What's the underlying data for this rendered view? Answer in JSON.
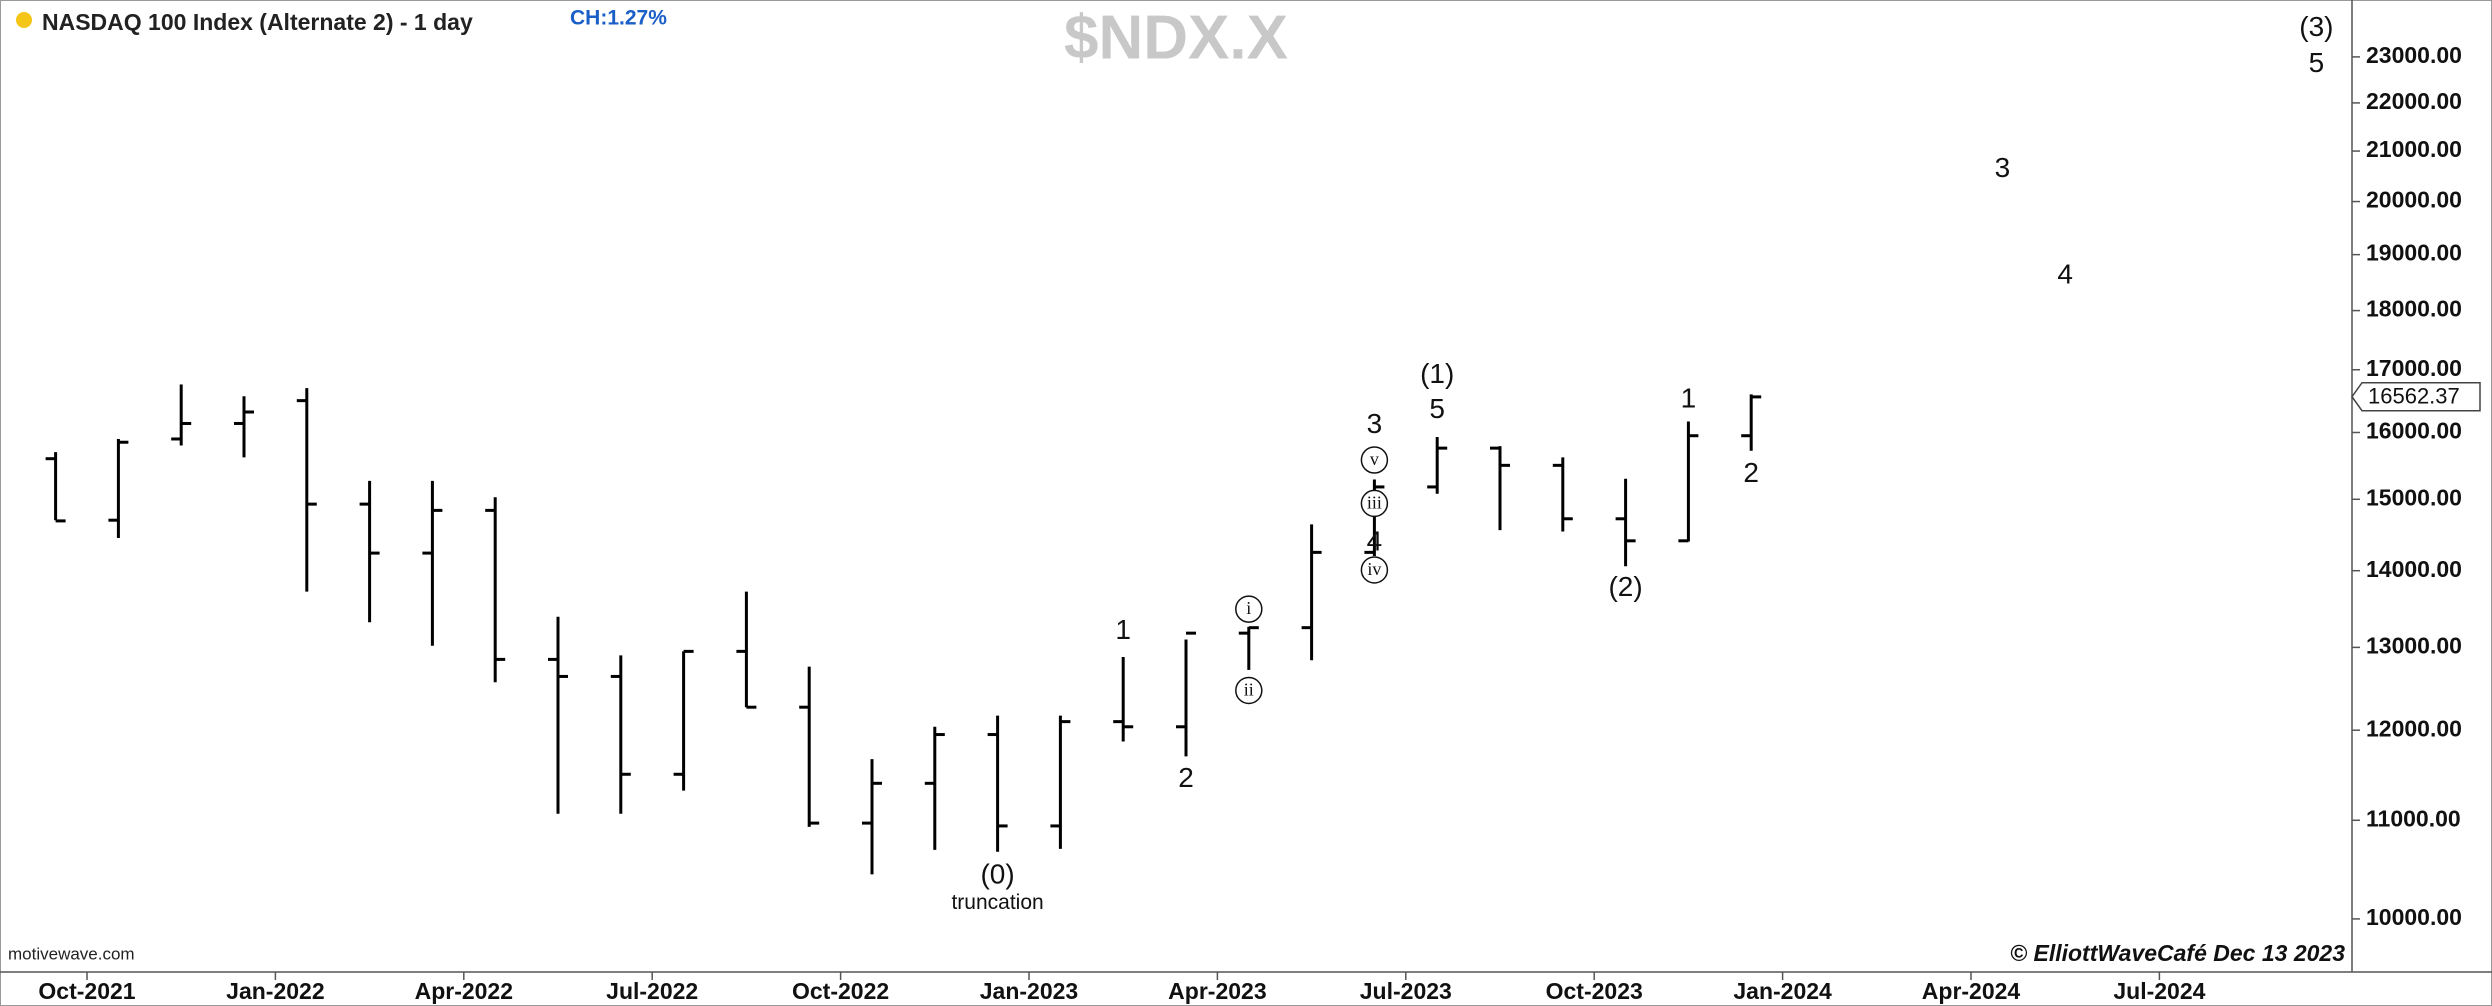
{
  "chart_data": {
    "type": "ohlc",
    "title": "NASDAQ 100 Index (Alternate 2) - 1 day",
    "change": "CH:1.27%",
    "watermark": "$NDX.X",
    "source": "motivewave.com",
    "copyright": "© ElliottWaveCafé Dec 13 2023",
    "last_price": 16562.37,
    "log_scale": true,
    "color": "#000000",
    "x": [
      "2021-09",
      "2021-10",
      "2021-11",
      "2021-12",
      "2022-01",
      "2022-02",
      "2022-03",
      "2022-04",
      "2022-05",
      "2022-06",
      "2022-07",
      "2022-08",
      "2022-09",
      "2022-10",
      "2022-11",
      "2022-12",
      "2023-01",
      "2023-02",
      "2023-03",
      "2023-04",
      "2023-05",
      "2023-06",
      "2023-07",
      "2023-08",
      "2023-09",
      "2023-10",
      "2023-11",
      "2023-12"
    ],
    "open": [
      15600,
      14700,
      15900,
      16140,
      16500,
      14930,
      14240,
      14840,
      12850,
      12640,
      11500,
      12950,
      12270,
      10970,
      11400,
      11950,
      10940,
      12100,
      12040,
      13180,
      13250,
      14250,
      15180,
      15760,
      15500,
      14720,
      14410,
      15950
    ],
    "high": [
      15700,
      15900,
      16760,
      16570,
      16700,
      15270,
      15270,
      15030,
      13390,
      12900,
      12950,
      13720,
      12760,
      11670,
      12040,
      12170,
      12170,
      12880,
      13100,
      13260,
      14640,
      15290,
      15930,
      15790,
      15620,
      15300,
      16170,
      16600
    ],
    "low": [
      14700,
      14450,
      15800,
      15620,
      13720,
      13320,
      13020,
      12570,
      11070,
      11070,
      11320,
      12270,
      10930,
      10440,
      10690,
      10670,
      10700,
      11870,
      11700,
      12720,
      12840,
      14200,
      15080,
      14560,
      14540,
      14060,
      14400,
      15720
    ],
    "close": [
      14690,
      15850,
      16140,
      16320,
      14930,
      14240,
      14840,
      12850,
      12640,
      11500,
      12950,
      12270,
      10970,
      11400,
      11950,
      10940,
      12100,
      12040,
      13180,
      13250,
      14250,
      15180,
      15760,
      15500,
      14720,
      14410,
      15950,
      16560
    ],
    "ylim": [
      9500,
      24300
    ],
    "yticks": [
      {
        "value": 10000,
        "label": "10000.00"
      },
      {
        "value": 11000,
        "label": "11000.00"
      },
      {
        "value": 12000,
        "label": "12000.00"
      },
      {
        "value": 13000,
        "label": "13000.00"
      },
      {
        "value": 14000,
        "label": "14000.00"
      },
      {
        "value": 15000,
        "label": "15000.00"
      },
      {
        "value": 16000,
        "label": "16000.00"
      },
      {
        "value": 17000,
        "label": "17000.00"
      },
      {
        "value": 18000,
        "label": "18000.00"
      },
      {
        "value": 19000,
        "label": "19000.00"
      },
      {
        "value": 20000,
        "label": "20000.00"
      },
      {
        "value": 21000,
        "label": "21000.00"
      },
      {
        "value": 22000,
        "label": "22000.00"
      },
      {
        "value": 23000,
        "label": "23000.00"
      }
    ],
    "xticks": [
      {
        "value": "2021-10",
        "label": "Oct-2021"
      },
      {
        "value": "2022-01",
        "label": "Jan-2022"
      },
      {
        "value": "2022-04",
        "label": "Apr-2022"
      },
      {
        "value": "2022-07",
        "label": "Jul-2022"
      },
      {
        "value": "2022-10",
        "label": "Oct-2022"
      },
      {
        "value": "2023-01",
        "label": "Jan-2023"
      },
      {
        "value": "2023-04",
        "label": "Apr-2023"
      },
      {
        "value": "2023-07",
        "label": "Jul-2023"
      },
      {
        "value": "2023-10",
        "label": "Oct-2023"
      },
      {
        "value": "2024-01",
        "label": "Jan-2024"
      },
      {
        "value": "2024-04",
        "label": "Apr-2024"
      },
      {
        "value": "2024-07",
        "label": "Jul-2024"
      }
    ],
    "annotations": [
      {
        "text": "(0)",
        "x": "2022-12",
        "y": 10420
      },
      {
        "text": "truncation",
        "x": "2022-12",
        "y": 10150,
        "small": true
      },
      {
        "text": "1",
        "x": "2023-02",
        "y": 13200
      },
      {
        "text": "2",
        "x": "2023-03",
        "y": 11440
      },
      {
        "text": "i",
        "x": "2023-04",
        "y": 13490,
        "circled": true
      },
      {
        "text": "ii",
        "x": "2023-04",
        "y": 12470,
        "circled": true
      },
      {
        "text": "iii",
        "x": "2023-06",
        "y": 14940,
        "circled": true
      },
      {
        "text": "iv",
        "x": "2023-06",
        "y": 14010,
        "circled": true
      },
      {
        "text": "v",
        "x": "2023-06",
        "y": 15580,
        "circled": true
      },
      {
        "text": "3",
        "x": "2023-06",
        "y": 16110
      },
      {
        "text": "4",
        "x": "2023-06",
        "y": 14380
      },
      {
        "text": "(1)",
        "x": "2023-07",
        "y": 16900
      },
      {
        "text": "5",
        "x": "2023-07",
        "y": 16340
      },
      {
        "text": "(2)",
        "x": "2023-10",
        "y": 13760
      },
      {
        "text": "1",
        "x": "2023-11",
        "y": 16510
      },
      {
        "text": "2",
        "x": "2023-12",
        "y": 15360
      },
      {
        "text": "3",
        "x": "2024-04",
        "y": 20630
      },
      {
        "text": "4",
        "x": "2024-05",
        "y": 18610
      },
      {
        "text": "(3)",
        "x": "2024-09",
        "y": 23640
      },
      {
        "text": "5",
        "x": "2024-09",
        "y": 22830
      }
    ]
  }
}
